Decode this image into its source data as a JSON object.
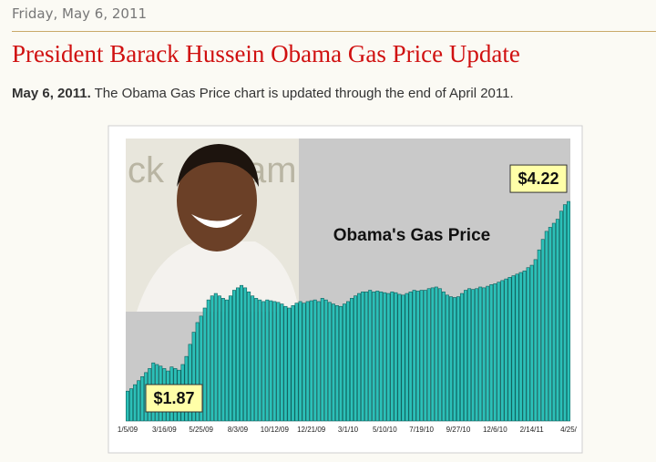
{
  "header": {
    "date": "Friday, May 6, 2011"
  },
  "post": {
    "title": "President Barack Hussein Obama Gas Price Update",
    "body_bold": "May 6, 2011.",
    "body_text": "The Obama Gas Price chart is updated through the end of April 2011."
  },
  "chart_data": {
    "type": "bar",
    "title": "Obama's  Gas Price",
    "color": "#2cc0b8",
    "ylim": [
      1.5,
      5
    ],
    "categories": [
      "1/5/09",
      null,
      null,
      null,
      null,
      null,
      null,
      null,
      null,
      null,
      "3/16/09",
      null,
      null,
      null,
      null,
      null,
      null,
      null,
      null,
      null,
      "5/25/09",
      null,
      null,
      null,
      null,
      null,
      null,
      null,
      null,
      null,
      "8/3/09",
      null,
      null,
      null,
      null,
      null,
      null,
      null,
      null,
      null,
      "10/12/09",
      null,
      null,
      null,
      null,
      null,
      null,
      null,
      null,
      null,
      "12/21/09",
      null,
      null,
      null,
      null,
      null,
      null,
      null,
      null,
      null,
      "3/1/10",
      null,
      null,
      null,
      null,
      null,
      null,
      null,
      null,
      null,
      "5/10/10",
      null,
      null,
      null,
      null,
      null,
      null,
      null,
      null,
      null,
      "7/19/10",
      null,
      null,
      null,
      null,
      null,
      null,
      null,
      null,
      null,
      "9/27/10",
      null,
      null,
      null,
      null,
      null,
      null,
      null,
      null,
      null,
      "12/6/10",
      null,
      null,
      null,
      null,
      null,
      null,
      null,
      null,
      null,
      "2/14/11",
      null,
      null,
      null,
      null,
      null,
      null,
      null,
      null,
      null,
      "4/25/"
    ],
    "values": [
      1.87,
      1.9,
      1.95,
      2.0,
      2.05,
      2.1,
      2.15,
      2.22,
      2.2,
      2.18,
      2.15,
      2.12,
      2.17,
      2.15,
      2.13,
      2.2,
      2.3,
      2.45,
      2.6,
      2.72,
      2.8,
      2.9,
      3.0,
      3.05,
      3.08,
      3.05,
      3.02,
      3.0,
      3.05,
      3.12,
      3.15,
      3.18,
      3.15,
      3.1,
      3.05,
      3.02,
      3.0,
      2.98,
      3.0,
      2.99,
      2.98,
      2.97,
      2.95,
      2.92,
      2.9,
      2.93,
      2.96,
      2.98,
      2.96,
      2.98,
      2.99,
      3.0,
      2.98,
      3.02,
      3.0,
      2.97,
      2.95,
      2.93,
      2.92,
      2.95,
      2.98,
      3.02,
      3.05,
      3.08,
      3.1,
      3.1,
      3.12,
      3.1,
      3.11,
      3.1,
      3.09,
      3.08,
      3.1,
      3.09,
      3.07,
      3.06,
      3.08,
      3.1,
      3.12,
      3.11,
      3.12,
      3.12,
      3.14,
      3.15,
      3.16,
      3.14,
      3.1,
      3.06,
      3.04,
      3.03,
      3.04,
      3.08,
      3.12,
      3.14,
      3.13,
      3.14,
      3.16,
      3.15,
      3.17,
      3.19,
      3.2,
      3.22,
      3.24,
      3.26,
      3.28,
      3.3,
      3.32,
      3.34,
      3.36,
      3.4,
      3.43,
      3.5,
      3.62,
      3.75,
      3.85,
      3.9,
      3.95,
      4.0,
      4.1,
      4.18,
      4.22
    ],
    "value_labels": [
      "$1.87",
      null,
      null,
      null,
      null,
      null,
      null,
      null,
      null,
      null,
      null,
      null,
      null,
      null,
      null,
      null,
      null,
      null,
      null,
      null,
      null,
      null,
      null,
      null,
      null,
      null,
      null,
      null,
      null,
      null,
      null,
      null,
      null,
      null,
      null,
      null,
      null,
      null,
      null,
      null,
      null,
      null,
      null,
      null,
      null,
      null,
      null,
      null,
      null,
      null,
      null,
      null,
      null,
      null,
      null,
      null,
      null,
      null,
      null,
      null,
      null,
      null,
      null,
      null,
      null,
      null,
      null,
      null,
      null,
      null,
      null,
      null,
      null,
      null,
      null,
      null,
      null,
      null,
      null,
      null,
      null,
      null,
      null,
      null,
      null,
      null,
      null,
      null,
      null,
      null,
      null,
      null,
      null,
      null,
      null,
      null,
      null,
      null,
      null,
      null,
      null,
      null,
      null,
      null,
      null,
      null,
      null,
      null,
      null,
      null,
      null,
      null,
      null,
      null,
      null,
      null,
      null,
      null,
      null,
      null,
      "$4.22"
    ]
  }
}
